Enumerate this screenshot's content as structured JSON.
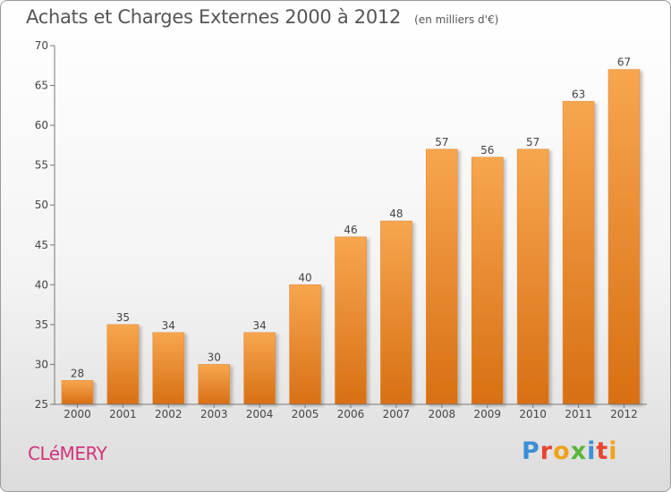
{
  "chart_data": {
    "type": "bar",
    "title": "Achats et Charges Externes 2000 à 2012",
    "subtitle": "(en milliers d'€)",
    "categories": [
      "2000",
      "2001",
      "2002",
      "2003",
      "2004",
      "2005",
      "2006",
      "2007",
      "2008",
      "2009",
      "2010",
      "2011",
      "2012"
    ],
    "values": [
      28,
      35,
      34,
      30,
      34,
      40,
      46,
      48,
      57,
      56,
      57,
      63,
      67
    ],
    "ylim": [
      25,
      70
    ],
    "yticks": [
      25,
      30,
      35,
      40,
      45,
      50,
      55,
      60,
      65,
      70
    ],
    "xlabel": "",
    "ylabel": "",
    "grid": false,
    "bar_color_top": "#f7a64f",
    "bar_color_bottom": "#d86f14"
  },
  "footer": {
    "commune": "CLéMERY",
    "brand": "Proxiti",
    "brand_colors": [
      "#3a8fd6",
      "#e8452e",
      "#f0a21c",
      "#5bb53a",
      "#3a8fd6",
      "#e8452e",
      "#f0a21c"
    ]
  }
}
